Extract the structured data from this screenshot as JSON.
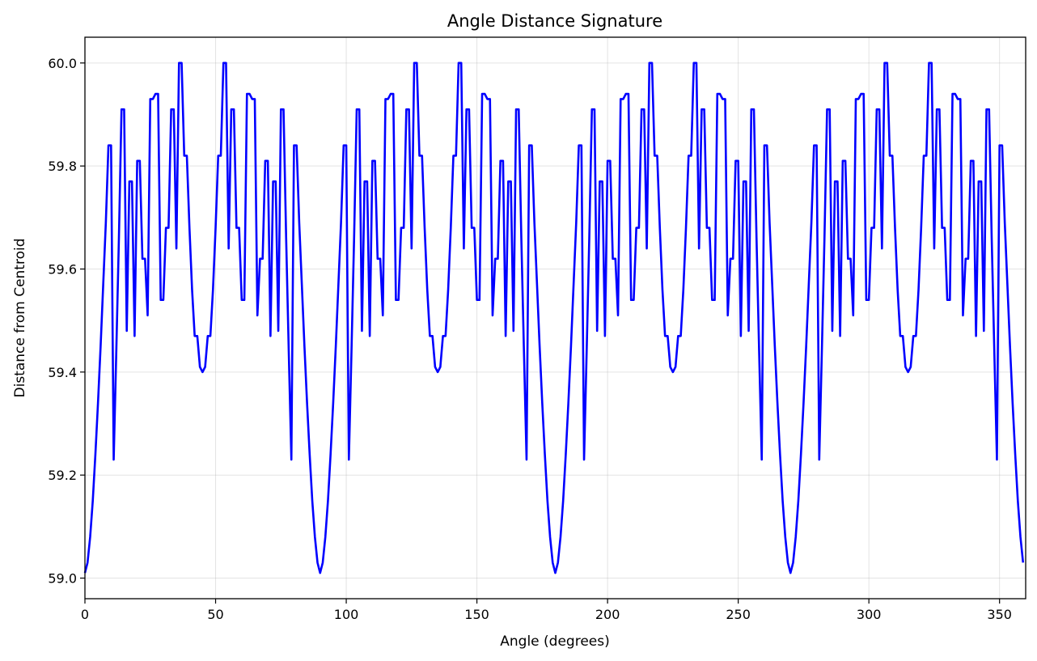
{
  "chart_data": {
    "type": "line",
    "title": "Angle Distance Signature",
    "xlabel": "Angle (degrees)",
    "ylabel": "Distance from Centroid",
    "xlim": [
      0,
      360
    ],
    "ylim": [
      58.96,
      60.05
    ],
    "xticks": [
      0,
      50,
      100,
      150,
      200,
      250,
      300,
      350
    ],
    "yticks": [
      59.0,
      59.2,
      59.4,
      59.6,
      59.8,
      60.0
    ],
    "ytick_labels": [
      "59.0",
      "59.2",
      "59.4",
      "59.6",
      "59.8",
      "60.0"
    ],
    "grid": true,
    "series": [
      {
        "color": "#0000ff",
        "period": 90,
        "points_one_period": [
          [
            0,
            59.01
          ],
          [
            1,
            59.03
          ],
          [
            2,
            59.08
          ],
          [
            3,
            59.15
          ],
          [
            4,
            59.24
          ],
          [
            5,
            59.34
          ],
          [
            6,
            59.45
          ],
          [
            7,
            59.57
          ],
          [
            8,
            59.69
          ],
          [
            9,
            59.84
          ],
          [
            10,
            59.84
          ],
          [
            11,
            59.23
          ],
          [
            12,
            59.44
          ],
          [
            13,
            59.66
          ],
          [
            14,
            59.91
          ],
          [
            15,
            59.91
          ],
          [
            16,
            59.48
          ],
          [
            17,
            59.77
          ],
          [
            18,
            59.77
          ],
          [
            19,
            59.47
          ],
          [
            20,
            59.81
          ],
          [
            21,
            59.81
          ],
          [
            22,
            59.62
          ],
          [
            23,
            59.62
          ],
          [
            24,
            59.51
          ],
          [
            25,
            59.93
          ],
          [
            26,
            59.93
          ],
          [
            27,
            59.94
          ],
          [
            28,
            59.94
          ],
          [
            29,
            59.54
          ],
          [
            30,
            59.54
          ],
          [
            31,
            59.68
          ],
          [
            32,
            59.68
          ],
          [
            33,
            59.91
          ],
          [
            34,
            59.91
          ],
          [
            35,
            59.64
          ],
          [
            36,
            60.0
          ],
          [
            37,
            60.0
          ],
          [
            38,
            59.82
          ],
          [
            39,
            59.82
          ],
          [
            40,
            59.68
          ],
          [
            41,
            59.56
          ],
          [
            42,
            59.47
          ],
          [
            43,
            59.47
          ],
          [
            44,
            59.41
          ],
          [
            45,
            59.4
          ],
          [
            46,
            59.41
          ],
          [
            47,
            59.47
          ],
          [
            48,
            59.47
          ],
          [
            49,
            59.56
          ],
          [
            50,
            59.68
          ],
          [
            51,
            59.82
          ],
          [
            52,
            59.82
          ],
          [
            53,
            60.0
          ],
          [
            54,
            60.0
          ],
          [
            55,
            59.64
          ],
          [
            56,
            59.91
          ],
          [
            57,
            59.91
          ],
          [
            58,
            59.68
          ],
          [
            59,
            59.68
          ],
          [
            60,
            59.54
          ],
          [
            61,
            59.54
          ],
          [
            62,
            59.94
          ],
          [
            63,
            59.94
          ],
          [
            64,
            59.93
          ],
          [
            65,
            59.93
          ],
          [
            66,
            59.51
          ],
          [
            67,
            59.62
          ],
          [
            68,
            59.62
          ],
          [
            69,
            59.81
          ],
          [
            70,
            59.81
          ],
          [
            71,
            59.47
          ],
          [
            72,
            59.77
          ],
          [
            73,
            59.77
          ],
          [
            74,
            59.48
          ],
          [
            75,
            59.91
          ],
          [
            76,
            59.91
          ],
          [
            77,
            59.66
          ],
          [
            78,
            59.44
          ],
          [
            79,
            59.23
          ],
          [
            80,
            59.84
          ],
          [
            81,
            59.84
          ],
          [
            82,
            59.69
          ],
          [
            83,
            59.57
          ],
          [
            84,
            59.45
          ],
          [
            85,
            59.34
          ],
          [
            86,
            59.24
          ],
          [
            87,
            59.15
          ],
          [
            88,
            59.08
          ],
          [
            89,
            59.03
          ],
          [
            90,
            59.01
          ]
        ]
      }
    ]
  }
}
